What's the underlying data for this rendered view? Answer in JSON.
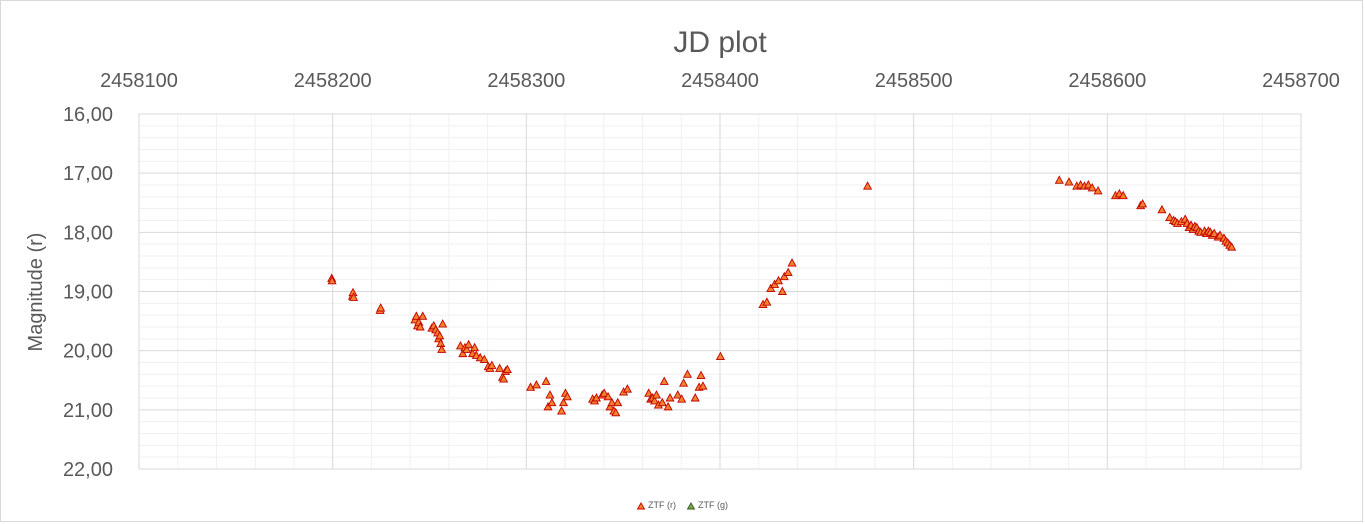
{
  "chart_data": {
    "type": "scatter",
    "title": "JD plot",
    "xlabel": "",
    "ylabel": "Magnitude (r)",
    "xlim": [
      2458100,
      2458700
    ],
    "ylim": [
      16,
      22
    ],
    "y_reversed": true,
    "x_axis_position": "top",
    "x_ticks": [
      "2458100",
      "2458200",
      "2458300",
      "2458400",
      "2458500",
      "2458600",
      "2458700"
    ],
    "y_ticks": [
      "16,00",
      "17,00",
      "18,00",
      "19,00",
      "20,00",
      "21,00",
      "22,00"
    ],
    "grid": true,
    "legend_position": "bottom",
    "series": [
      {
        "name": "ZTF (r)",
        "marker": "triangle",
        "fill": "#f4822c",
        "stroke": "#c00000",
        "points": [
          [
            2458199.5,
            18.78
          ],
          [
            2458199.7,
            18.82
          ],
          [
            2458210.2,
            19.08
          ],
          [
            2458210.5,
            19.02
          ],
          [
            2458210.8,
            19.1
          ],
          [
            2458224.5,
            19.32
          ],
          [
            2458224.8,
            19.28
          ],
          [
            2458242.5,
            19.48
          ],
          [
            2458243.2,
            19.42
          ],
          [
            2458243.8,
            19.58
          ],
          [
            2458244.5,
            19.52
          ],
          [
            2458245.2,
            19.6
          ],
          [
            2458246.5,
            19.42
          ],
          [
            2458251.2,
            19.62
          ],
          [
            2458252.2,
            19.58
          ],
          [
            2458253.2,
            19.65
          ],
          [
            2458254.2,
            19.7
          ],
          [
            2458254.7,
            19.8
          ],
          [
            2458255.3,
            19.75
          ],
          [
            2458255.8,
            19.88
          ],
          [
            2458256.3,
            19.98
          ],
          [
            2458256.8,
            19.55
          ],
          [
            2458266.0,
            19.92
          ],
          [
            2458267.2,
            20.05
          ],
          [
            2458268.3,
            19.95
          ],
          [
            2458269.2,
            19.98
          ],
          [
            2458270.2,
            19.9
          ],
          [
            2458272.2,
            20.05
          ],
          [
            2458273.3,
            19.95
          ],
          [
            2458274.2,
            20.08
          ],
          [
            2458276.2,
            20.12
          ],
          [
            2458278.3,
            20.15
          ],
          [
            2458280.3,
            20.27
          ],
          [
            2458281.2,
            20.3
          ],
          [
            2458282.2,
            20.25
          ],
          [
            2458286.2,
            20.3
          ],
          [
            2458287.7,
            20.45
          ],
          [
            2458288.3,
            20.48
          ],
          [
            2458289.3,
            20.35
          ],
          [
            2458290.2,
            20.32
          ],
          [
            2458302.2,
            20.62
          ],
          [
            2458305.2,
            20.58
          ],
          [
            2458310.2,
            20.52
          ],
          [
            2458311.2,
            20.95
          ],
          [
            2458312.2,
            20.75
          ],
          [
            2458313.2,
            20.88
          ],
          [
            2458318.2,
            21.02
          ],
          [
            2458319.2,
            20.88
          ],
          [
            2458320.2,
            20.72
          ],
          [
            2458321.2,
            20.78
          ],
          [
            2458334.2,
            20.82
          ],
          [
            2458335.2,
            20.85
          ],
          [
            2458336.2,
            20.8
          ],
          [
            2458339.2,
            20.75
          ],
          [
            2458340.2,
            20.72
          ],
          [
            2458342.2,
            20.78
          ],
          [
            2458343.2,
            20.95
          ],
          [
            2458344.2,
            20.88
          ],
          [
            2458345.2,
            21.02
          ],
          [
            2458346.2,
            21.05
          ],
          [
            2458347.2,
            20.88
          ],
          [
            2458350.2,
            20.7
          ],
          [
            2458352.2,
            20.65
          ],
          [
            2458363.2,
            20.72
          ],
          [
            2458364.2,
            20.82
          ],
          [
            2458365.2,
            20.8
          ],
          [
            2458366.2,
            20.85
          ],
          [
            2458367.2,
            20.75
          ],
          [
            2458368.2,
            20.92
          ],
          [
            2458370.2,
            20.88
          ],
          [
            2458371.2,
            20.52
          ],
          [
            2458373.2,
            20.95
          ],
          [
            2458374.2,
            20.8
          ],
          [
            2458378.2,
            20.75
          ],
          [
            2458380.2,
            20.82
          ],
          [
            2458381.2,
            20.55
          ],
          [
            2458383.2,
            20.4
          ],
          [
            2458387.2,
            20.8
          ],
          [
            2458389.2,
            20.62
          ],
          [
            2458390.2,
            20.42
          ],
          [
            2458391.2,
            20.6
          ],
          [
            2458400.2,
            20.1
          ],
          [
            2458422.2,
            19.22
          ],
          [
            2458424.2,
            19.18
          ],
          [
            2458426.2,
            18.95
          ],
          [
            2458428.2,
            18.88
          ],
          [
            2458430.2,
            18.82
          ],
          [
            2458432.2,
            19.0
          ],
          [
            2458433.2,
            18.75
          ],
          [
            2458435.2,
            18.68
          ],
          [
            2458437.2,
            18.52
          ],
          [
            2458476.2,
            17.22
          ],
          [
            2458575.2,
            17.12
          ],
          [
            2458580.2,
            17.15
          ],
          [
            2458584.2,
            17.22
          ],
          [
            2458586.2,
            17.2
          ],
          [
            2458588.2,
            17.22
          ],
          [
            2458590.2,
            17.2
          ],
          [
            2458592.2,
            17.25
          ],
          [
            2458595.2,
            17.3
          ],
          [
            2458604.2,
            17.38
          ],
          [
            2458606.2,
            17.35
          ],
          [
            2458608.2,
            17.38
          ],
          [
            2458617.2,
            17.55
          ],
          [
            2458618.2,
            17.52
          ],
          [
            2458628.2,
            17.62
          ],
          [
            2458632.2,
            17.75
          ],
          [
            2458634.2,
            17.8
          ],
          [
            2458635.2,
            17.82
          ],
          [
            2458636.2,
            17.85
          ],
          [
            2458638.2,
            17.82
          ],
          [
            2458640.2,
            17.78
          ],
          [
            2458641.2,
            17.85
          ],
          [
            2458642.2,
            17.92
          ],
          [
            2458643.2,
            17.88
          ],
          [
            2458644.2,
            17.95
          ],
          [
            2458645.2,
            17.9
          ],
          [
            2458646.2,
            17.92
          ],
          [
            2458647.2,
            17.98
          ],
          [
            2458648.2,
            18.0
          ],
          [
            2458650.2,
            17.98
          ],
          [
            2458651.2,
            18.02
          ],
          [
            2458652.2,
            17.98
          ],
          [
            2458653.2,
            18.0
          ],
          [
            2458654.2,
            18.05
          ],
          [
            2458655.2,
            18.02
          ],
          [
            2458657.2,
            18.08
          ],
          [
            2458658.2,
            18.05
          ],
          [
            2458660.2,
            18.1
          ],
          [
            2458661.2,
            18.15
          ],
          [
            2458662.2,
            18.18
          ],
          [
            2458663.2,
            18.22
          ],
          [
            2458664.2,
            18.25
          ]
        ]
      },
      {
        "name": "ZTF (g)",
        "marker": "triangle",
        "fill": "#70ad47",
        "stroke": "#375623",
        "points": []
      }
    ]
  }
}
